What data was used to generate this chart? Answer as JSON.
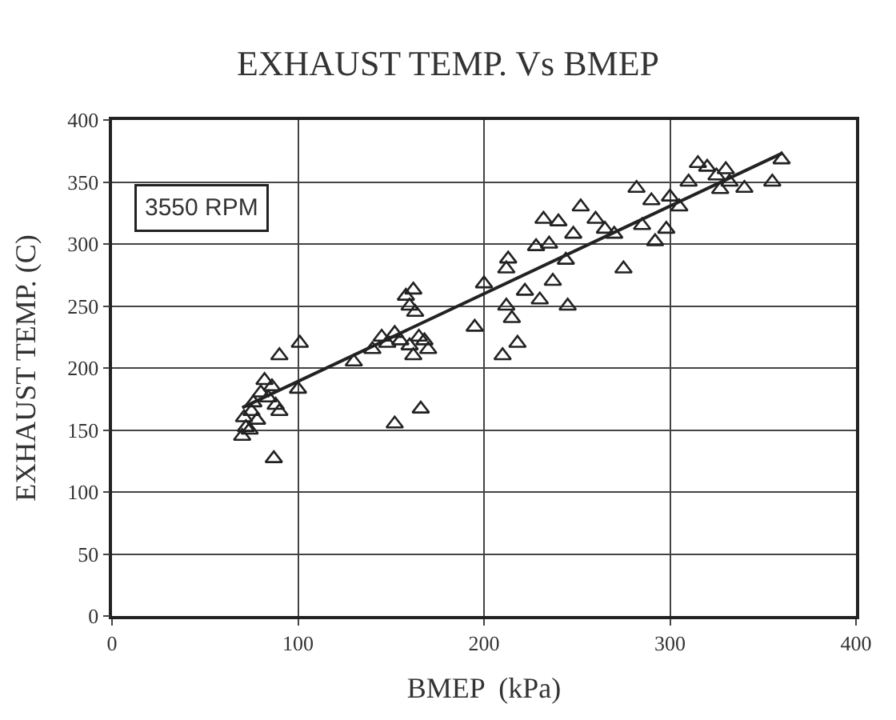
{
  "chart_data": {
    "type": "scatter",
    "title": "EXHAUST TEMP. Vs BMEP",
    "xlabel": "BMEP  (kPa)",
    "ylabel": "EXHAUST TEMP. (C)",
    "xlim": [
      0,
      400
    ],
    "ylim": [
      0,
      400
    ],
    "xticks": [
      0,
      100,
      200,
      300,
      400
    ],
    "yticks": [
      0,
      50,
      100,
      150,
      200,
      250,
      300,
      350,
      400
    ],
    "grid": true,
    "legend": false,
    "marker": "triangle",
    "annotations": [
      "3550 RPM"
    ],
    "series": [
      {
        "color": "#222222",
        "x": [
          70,
          72,
          71,
          75,
          78,
          76,
          80,
          84,
          86,
          88,
          90,
          87,
          90,
          101,
          100,
          82,
          74,
          130,
          140,
          145,
          148,
          152,
          155,
          158,
          162,
          160,
          163,
          165,
          162,
          160,
          168,
          152,
          166,
          170,
          195,
          200,
          210,
          212,
          215,
          212,
          213,
          218,
          222,
          228,
          230,
          232,
          235,
          237,
          240,
          244,
          245,
          248,
          252,
          260,
          265,
          270,
          275,
          282,
          285,
          292,
          298,
          300,
          305,
          310,
          315,
          320,
          325,
          327,
          330,
          332,
          340,
          355,
          360,
          290
        ],
        "values": [
          145,
          152,
          160,
          165,
          158,
          172,
          180,
          176,
          185,
          170,
          165,
          127,
          210,
          220,
          183,
          190,
          150,
          205,
          215,
          225,
          220,
          228,
          222,
          258,
          263,
          250,
          245,
          225,
          210,
          218,
          222,
          155,
          167,
          215,
          233,
          268,
          210,
          250,
          240,
          280,
          288,
          220,
          262,
          298,
          255,
          320,
          300,
          270,
          318,
          287,
          250,
          308,
          330,
          320,
          312,
          308,
          280,
          345,
          315,
          302,
          312,
          338,
          330,
          350,
          365,
          362,
          355,
          344,
          360,
          350,
          345,
          350,
          368,
          335
        ]
      },
      {
        "type": "line",
        "color": "#222222",
        "x": [
          70,
          360
        ],
        "values": [
          168,
          373
        ],
        "marker": "none",
        "line_style": "solid"
      }
    ]
  }
}
